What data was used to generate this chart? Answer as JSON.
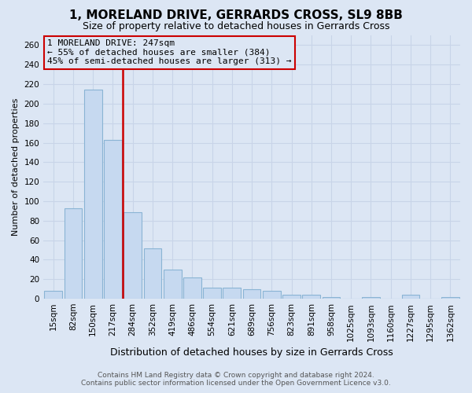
{
  "title": "1, MORELAND DRIVE, GERRARDS CROSS, SL9 8BB",
  "subtitle": "Size of property relative to detached houses in Gerrards Cross",
  "xlabel": "Distribution of detached houses by size in Gerrards Cross",
  "ylabel": "Number of detached properties",
  "footer_line1": "Contains HM Land Registry data © Crown copyright and database right 2024.",
  "footer_line2": "Contains public sector information licensed under the Open Government Licence v3.0.",
  "annotation_line1": "1 MORELAND DRIVE: 247sqm",
  "annotation_line2": "← 55% of detached houses are smaller (384)",
  "annotation_line3": "45% of semi-detached houses are larger (313) →",
  "cat_labels": [
    "15sqm",
    "82sqm",
    "150sqm",
    "217sqm",
    "284sqm",
    "352sqm",
    "419sqm",
    "486sqm",
    "554sqm",
    "621sqm",
    "689sqm",
    "756sqm",
    "823sqm",
    "891sqm",
    "958sqm",
    "1025sqm",
    "1093sqm",
    "1160sqm",
    "1227sqm",
    "1295sqm",
    "1362sqm"
  ],
  "values": [
    8,
    93,
    214,
    163,
    89,
    52,
    30,
    22,
    11,
    11,
    10,
    8,
    4,
    4,
    2,
    0,
    2,
    0,
    4,
    0,
    2
  ],
  "vline_index": 3,
  "bar_color": "#c6d9f0",
  "bar_edge_color": "#8ab4d4",
  "vline_color": "#cc0000",
  "box_color": "#cc0000",
  "grid_color": "#c8d4e8",
  "bg_color": "#dce6f4",
  "ylim": [
    0,
    270
  ],
  "yticks": [
    0,
    20,
    40,
    60,
    80,
    100,
    120,
    140,
    160,
    180,
    200,
    220,
    240,
    260
  ],
  "title_fontsize": 11,
  "subtitle_fontsize": 9,
  "ylabel_fontsize": 8,
  "xlabel_fontsize": 9,
  "tick_fontsize": 7.5,
  "annot_fontsize": 8
}
